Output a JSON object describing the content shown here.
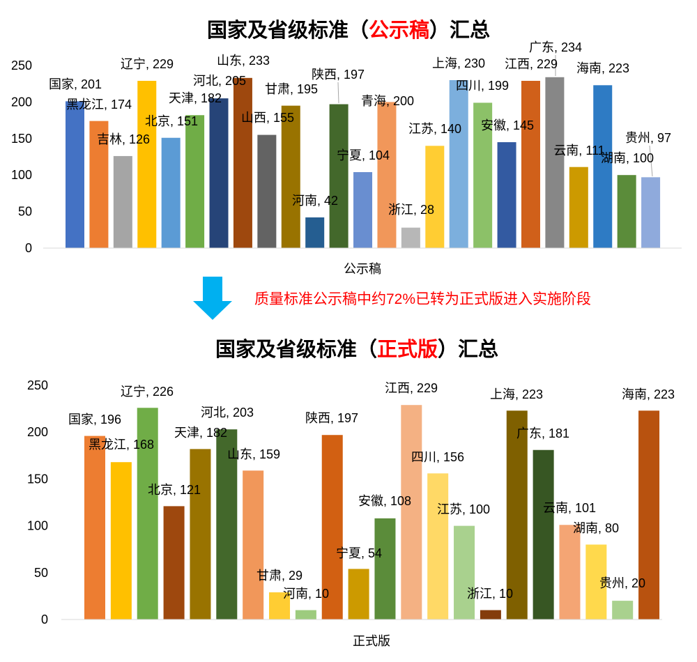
{
  "colors": {
    "highlight": "#FF0000",
    "axis_line": "#D9D9D9",
    "leader_line": "#A6A6A6",
    "text": "#000000"
  },
  "annotation": {
    "arrow_icon": "down-arrow-icon",
    "arrow_color": "#00B0F0",
    "text": "质量标准公示稿中约72%已转为正式版进入实施阶段",
    "text_color": "#FF0000"
  },
  "chart_data": [
    {
      "type": "bar",
      "title": {
        "prefix": "国家及省级标准（",
        "highlight": "公示稿",
        "suffix": "）汇总"
      },
      "xlabel": "公示稿",
      "ylim": [
        0,
        250
      ],
      "yticks": [
        0,
        50,
        100,
        150,
        200,
        250
      ],
      "grid": false,
      "data_labels": true,
      "categories": [
        "国家",
        "黑龙江",
        "吉林",
        "辽宁",
        "北京",
        "天津",
        "河北",
        "山东",
        "山西",
        "甘肃",
        "河南",
        "陕西",
        "宁夏",
        "青海",
        "浙江",
        "江苏",
        "上海",
        "四川",
        "安徽",
        "江西",
        "广东",
        "云南",
        "海南",
        "湖南",
        "贵州"
      ],
      "values": [
        201,
        174,
        126,
        229,
        151,
        182,
        205,
        233,
        155,
        195,
        42,
        197,
        104,
        200,
        28,
        140,
        230,
        199,
        145,
        229,
        234,
        111,
        223,
        100,
        97
      ],
      "colors": [
        "#4472C4",
        "#ED7D31",
        "#A5A5A5",
        "#FFC000",
        "#5B9BD5",
        "#70AD47",
        "#264478",
        "#9E480E",
        "#636363",
        "#997300",
        "#255E91",
        "#43682B",
        "#698ED0",
        "#F1975A",
        "#B7B7B7",
        "#FFCD33",
        "#7CAFDD",
        "#8CC168",
        "#335AA1",
        "#D0601A",
        "#878787",
        "#CC9A00",
        "#2E7BC4",
        "#5B8C3A",
        "#8FAADC"
      ]
    },
    {
      "type": "bar",
      "title": {
        "prefix": "国家及省级标准（",
        "highlight": "正式版",
        "suffix": "）汇总"
      },
      "xlabel": "正式版",
      "ylim": [
        0,
        250
      ],
      "yticks": [
        0,
        50,
        100,
        150,
        200,
        250
      ],
      "grid": false,
      "data_labels": true,
      "categories": [
        "国家",
        "黑龙江",
        "辽宁",
        "北京",
        "天津",
        "河北",
        "山东",
        "甘肃",
        "河南",
        "陕西",
        "宁夏",
        "安徽",
        "江西",
        "四川",
        "江苏",
        "浙江",
        "上海",
        "广东",
        "云南",
        "湖南",
        "贵州",
        "海南"
      ],
      "values": [
        196,
        168,
        226,
        121,
        182,
        203,
        159,
        29,
        10,
        197,
        54,
        108,
        229,
        156,
        100,
        10,
        223,
        181,
        101,
        80,
        20,
        223
      ],
      "colors": [
        "#ED7D31",
        "#FFC000",
        "#70AD47",
        "#9E480E",
        "#997300",
        "#43682B",
        "#F1975A",
        "#FFCD33",
        "#9DCB7E",
        "#D26012",
        "#CC9A00",
        "#5B8C3A",
        "#F4B183",
        "#FFD966",
        "#A9D18E",
        "#843C0C",
        "#7F6000",
        "#375623",
        "#F4A574",
        "#FFD94C",
        "#A9D18E",
        "#B8520F"
      ]
    }
  ]
}
